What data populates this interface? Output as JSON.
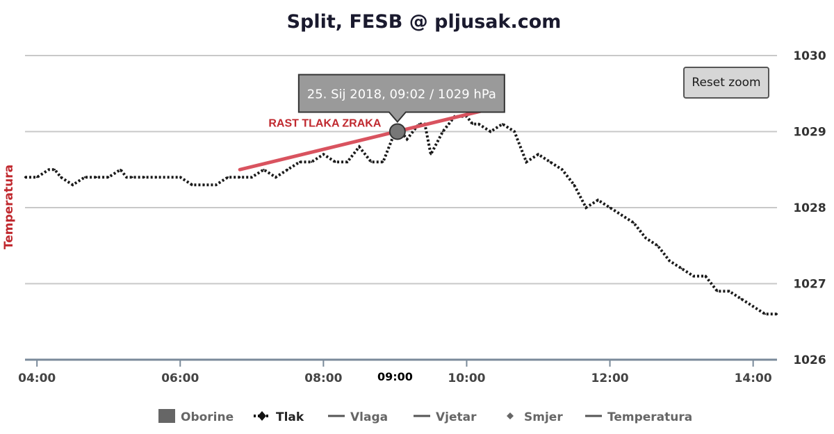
{
  "chart_data": {
    "type": "line",
    "title": "Split, FESB @ pljusak.com",
    "ylabel": "Temperatura",
    "x_ticks": [
      "04:00",
      "06:00",
      "08:00",
      "10:00",
      "12:00",
      "14:00"
    ],
    "x_highlight_label": "09:00",
    "y_ticks": [
      "1026",
      "1027",
      "1028",
      "1029",
      "1030"
    ],
    "xlim": [
      "03:50",
      "14:20"
    ],
    "ylim": [
      1026,
      1030
    ],
    "grid": true,
    "legend_position": "bottom",
    "series": [
      {
        "name": "Tlak",
        "x": [
          "03:50",
          "04:00",
          "04:10",
          "04:15",
          "04:20",
          "04:30",
          "04:40",
          "04:50",
          "05:00",
          "05:10",
          "05:15",
          "05:20",
          "05:30",
          "05:40",
          "05:50",
          "06:00",
          "06:10",
          "06:20",
          "06:30",
          "06:40",
          "06:50",
          "07:00",
          "07:10",
          "07:20",
          "07:30",
          "07:40",
          "07:50",
          "08:00",
          "08:10",
          "08:20",
          "08:30",
          "08:40",
          "08:50",
          "09:00",
          "09:05",
          "09:10",
          "09:20",
          "09:25",
          "09:30",
          "09:40",
          "09:45",
          "09:50",
          "10:00",
          "10:05",
          "10:10",
          "10:20",
          "10:30",
          "10:40",
          "10:50",
          "11:00",
          "11:10",
          "11:20",
          "11:30",
          "11:40",
          "11:50",
          "12:00",
          "12:10",
          "12:20",
          "12:30",
          "12:40",
          "12:50",
          "13:00",
          "13:10",
          "13:20",
          "13:30",
          "13:40",
          "13:50",
          "14:00",
          "14:10",
          "14:20"
        ],
        "y": [
          1028.4,
          1028.4,
          1028.5,
          1028.5,
          1028.4,
          1028.3,
          1028.4,
          1028.4,
          1028.4,
          1028.5,
          1028.4,
          1028.4,
          1028.4,
          1028.4,
          1028.4,
          1028.4,
          1028.3,
          1028.3,
          1028.3,
          1028.4,
          1028.4,
          1028.4,
          1028.5,
          1028.4,
          1028.5,
          1028.6,
          1028.6,
          1028.7,
          1028.6,
          1028.6,
          1028.8,
          1028.6,
          1028.6,
          1029.0,
          1029.0,
          1028.9,
          1029.1,
          1029.1,
          1028.7,
          1029.0,
          1029.1,
          1029.2,
          1029.2,
          1029.1,
          1029.1,
          1029.0,
          1029.1,
          1029.0,
          1028.6,
          1028.7,
          1028.6,
          1028.5,
          1028.3,
          1028.0,
          1028.1,
          1028.0,
          1027.9,
          1027.8,
          1027.6,
          1027.5,
          1027.3,
          1027.2,
          1027.1,
          1027.1,
          1026.9,
          1026.9,
          1026.8,
          1026.7,
          1026.6,
          1026.6
        ]
      }
    ],
    "tooltip": {
      "text": "25. Sij 2018, 09:02 / 1029 hPa",
      "x": "09:02",
      "y": 1029
    },
    "annotation": {
      "text": "RAST TLAKA ZRAKA",
      "trend_start": {
        "x": "06:50",
        "y": 1028.5
      },
      "trend_end": {
        "x": "10:20",
        "y": 1029.3
      }
    },
    "legend": [
      {
        "label": "Oborine",
        "symbol": "box",
        "active": false
      },
      {
        "label": "Tlak",
        "symbol": "dotted-diamond",
        "active": true
      },
      {
        "label": "Vlaga",
        "symbol": "line",
        "active": false
      },
      {
        "label": "Vjetar",
        "symbol": "line",
        "active": false
      },
      {
        "label": "Smjer",
        "symbol": "diamond",
        "active": false
      },
      {
        "label": "Temperatura",
        "symbol": "line",
        "active": false
      }
    ]
  },
  "controls": {
    "reset_zoom_label": "Reset zoom"
  },
  "colors": {
    "series": "#1a1a1a",
    "trend": "#d9535f",
    "annotation": "#c0282e",
    "grid": "#c8c8c8",
    "axis": "#7a8a9a"
  }
}
